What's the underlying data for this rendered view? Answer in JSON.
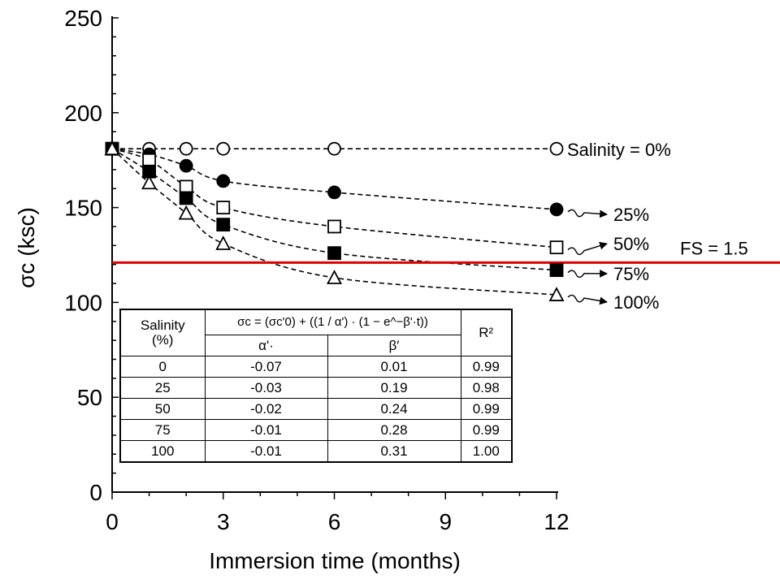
{
  "chart_data": {
    "type": "scatter",
    "xlabel": "Immersion time (months)",
    "ylabel": "σc (ksc)",
    "xlim": [
      0,
      12
    ],
    "ylim": [
      0,
      250
    ],
    "x_ticks": [
      "0",
      "3",
      "6",
      "9",
      "12"
    ],
    "y_ticks": [
      "0",
      "50",
      "100",
      "150",
      "200",
      "250"
    ],
    "grid": false,
    "series": [
      {
        "name": "Salinity = 0%",
        "label": "Salinity = 0%",
        "marker": "open-circle",
        "x": [
          0,
          1,
          2,
          3,
          6,
          12
        ],
        "y": [
          181,
          181,
          181,
          181,
          181,
          181
        ]
      },
      {
        "name": "25%",
        "label": "25%",
        "marker": "filled-circle",
        "x": [
          0,
          1,
          2,
          3,
          6,
          12
        ],
        "y": [
          181,
          178,
          172,
          164,
          158,
          149
        ]
      },
      {
        "name": "50%",
        "label": "50%",
        "marker": "open-square",
        "x": [
          0,
          1,
          2,
          3,
          6,
          12
        ],
        "y": [
          181,
          175,
          161,
          150,
          140,
          129
        ]
      },
      {
        "name": "75%",
        "label": "75%",
        "marker": "filled-square",
        "x": [
          0,
          1,
          2,
          3,
          6,
          12
        ],
        "y": [
          181,
          169,
          155,
          141,
          126,
          117
        ]
      },
      {
        "name": "100%",
        "label": "100%",
        "marker": "open-triangle",
        "x": [
          0,
          1,
          2,
          3,
          6,
          12
        ],
        "y": [
          181,
          163,
          147,
          131,
          113,
          104
        ]
      }
    ],
    "reference_line": {
      "label": "FS = 1.5",
      "y": 121,
      "color": "#e00000"
    },
    "fit_table": {
      "equation": "σc = (σc'0) + ((1 / α') · (1 − e^−β'·t))",
      "col_salinity": "Salinity (%)",
      "col_salinity_line1": "Salinity",
      "col_salinity_line2": "(%)",
      "col_alpha": "α'·",
      "col_beta": "β′",
      "col_r2": "R²",
      "rows": [
        {
          "salinity": "0",
          "alpha": "-0.07",
          "beta": "0.01",
          "r2": "0.99"
        },
        {
          "salinity": "25",
          "alpha": "-0.03",
          "beta": "0.19",
          "r2": "0.98"
        },
        {
          "salinity": "50",
          "alpha": "-0.02",
          "beta": "0.24",
          "r2": "0.99"
        },
        {
          "salinity": "75",
          "alpha": "-0.01",
          "beta": "0.28",
          "r2": "0.99"
        },
        {
          "salinity": "100",
          "alpha": "-0.01",
          "beta": "0.31",
          "r2": "1.00"
        }
      ]
    }
  }
}
